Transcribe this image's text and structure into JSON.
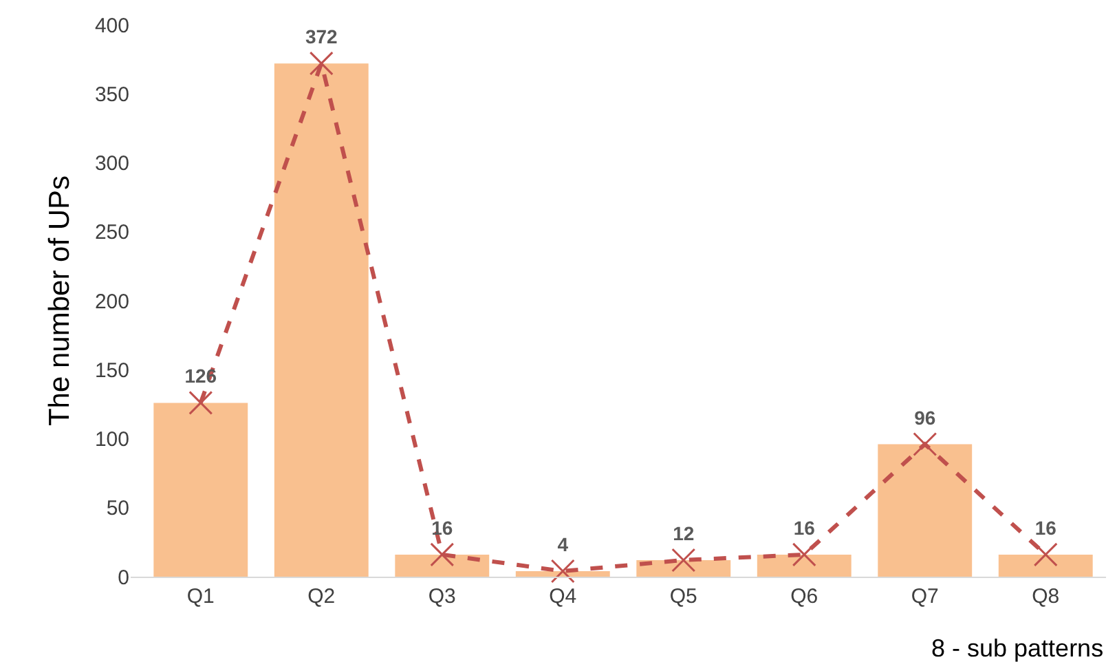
{
  "chart_data": {
    "type": "bar",
    "categories": [
      "Q1",
      "Q2",
      "Q3",
      "Q4",
      "Q5",
      "Q6",
      "Q7",
      "Q8"
    ],
    "series": [
      {
        "color": "#f9c08f",
        "values": [
          126,
          372,
          16,
          4,
          12,
          16,
          96,
          16
        ]
      },
      {
        "type": "line",
        "color": "#c0504d",
        "values": [
          126,
          372,
          16,
          4,
          12,
          16,
          96,
          16
        ],
        "value_labels": [
          "126",
          "372",
          "16",
          "4",
          "12",
          "16",
          "96",
          "16"
        ],
        "marker": "cross",
        "line_style": "dashed"
      }
    ],
    "ylim": [
      0,
      400
    ],
    "yticks": [
      0,
      50,
      100,
      150,
      200,
      250,
      300,
      350,
      400
    ],
    "xlabel": "8 - sub patterns",
    "ylabel": "The number of UPs"
  }
}
